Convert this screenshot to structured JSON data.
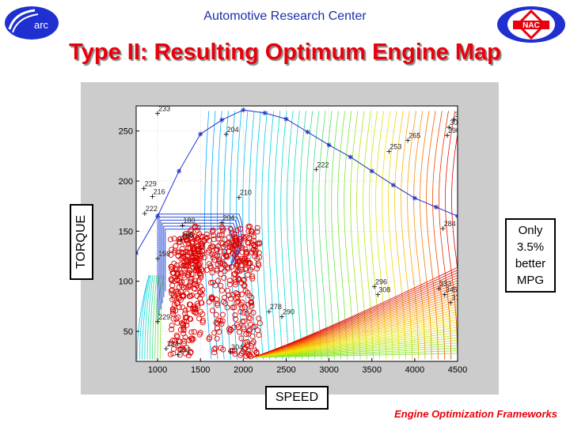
{
  "header": {
    "title": "Automotive Research Center",
    "left_logo": "arc",
    "right_logo": "NAC"
  },
  "slide_title": "Type II: Resulting Optimum Engine Map",
  "labels": {
    "xaxis": "SPEED",
    "yaxis": "TORQUE"
  },
  "note_lines": [
    "Only",
    "3.5%",
    "better",
    "MPG"
  ],
  "footer": "Engine Optimization Frameworks",
  "colors": {
    "title_red": "#e8000b",
    "header_blue": "#1a2fa8",
    "curve_blue": "#2233cc",
    "point_red": "#dd0000"
  },
  "chart_data": {
    "type": "scatter",
    "title": "",
    "xlabel": "SPEED",
    "ylabel": "TORQUE",
    "xlim": [
      750,
      4500
    ],
    "ylim": [
      20,
      275
    ],
    "xticks": [
      1000,
      1500,
      2000,
      2500,
      3000,
      3500,
      4000,
      4500
    ],
    "yticks": [
      50,
      100,
      150,
      200,
      250
    ],
    "grid": true,
    "max_torque_curve": [
      [
        750,
        128
      ],
      [
        1000,
        165
      ],
      [
        1250,
        210
      ],
      [
        1500,
        247
      ],
      [
        1750,
        261
      ],
      [
        2000,
        271
      ],
      [
        2250,
        268
      ],
      [
        2500,
        262
      ],
      [
        2750,
        249
      ],
      [
        3000,
        236
      ],
      [
        3250,
        224
      ],
      [
        3500,
        210
      ],
      [
        3750,
        196
      ],
      [
        4000,
        183
      ],
      [
        4250,
        174
      ],
      [
        4500,
        165
      ]
    ],
    "contour_labels": [
      {
        "x": 1000,
        "y": 270,
        "text": "233"
      },
      {
        "x": 1800,
        "y": 249,
        "text": "204"
      },
      {
        "x": 2850,
        "y": 214,
        "text": "222"
      },
      {
        "x": 3700,
        "y": 232,
        "text": "253"
      },
      {
        "x": 3920,
        "y": 243,
        "text": "265"
      },
      {
        "x": 4460,
        "y": 264,
        "text": "31"
      },
      {
        "x": 4400,
        "y": 256,
        "text": "300"
      },
      {
        "x": 4380,
        "y": 248,
        "text": "290"
      },
      {
        "x": 840,
        "y": 195,
        "text": "229"
      },
      {
        "x": 940,
        "y": 187,
        "text": "216"
      },
      {
        "x": 850,
        "y": 170,
        "text": "222"
      },
      {
        "x": 1950,
        "y": 186,
        "text": "210"
      },
      {
        "x": 1290,
        "y": 158,
        "text": "180"
      },
      {
        "x": 1750,
        "y": 161,
        "text": "204"
      },
      {
        "x": 1270,
        "y": 144,
        "text": "186"
      },
      {
        "x": 1000,
        "y": 125,
        "text": "198"
      },
      {
        "x": 4330,
        "y": 155,
        "text": "284"
      },
      {
        "x": 3530,
        "y": 97,
        "text": "296"
      },
      {
        "x": 3570,
        "y": 89,
        "text": "308"
      },
      {
        "x": 4280,
        "y": 95,
        "text": "333"
      },
      {
        "x": 4350,
        "y": 89,
        "text": "345"
      },
      {
        "x": 4420,
        "y": 81,
        "text": "371"
      },
      {
        "x": 2300,
        "y": 72,
        "text": "278"
      },
      {
        "x": 2450,
        "y": 67,
        "text": "290"
      },
      {
        "x": 1000,
        "y": 62,
        "text": "229"
      },
      {
        "x": 1100,
        "y": 35,
        "text": "284"
      },
      {
        "x": 1240,
        "y": 29,
        "text": "292"
      },
      {
        "x": 1850,
        "y": 32,
        "text": "304"
      }
    ]
  }
}
